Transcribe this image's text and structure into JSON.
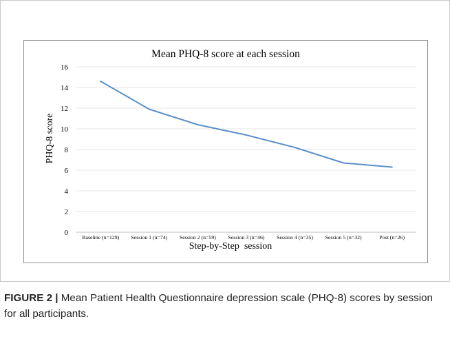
{
  "chart_data": {
    "type": "line",
    "title": "Mean PHQ-8 score at each session",
    "xlabel": "Step-by-Step  session",
    "ylabel": "PHQ-8 score",
    "categories": [
      "Baseline (n=129)",
      "Session 1 (n=74)",
      "Session 2 (n=59)",
      "Session 3 (n=46)",
      "Session 4 (n=35)",
      "Session 5 (n=32)",
      "Post (n=26)"
    ],
    "series": [
      {
        "values": [
          14.6,
          11.9,
          10.4,
          9.4,
          8.2,
          6.7,
          6.3
        ]
      }
    ],
    "ylim": [
      0,
      16
    ],
    "yticks": [
      0,
      2,
      4,
      6,
      8,
      10,
      12,
      14,
      16
    ],
    "grid": true,
    "line_color": "#5b8fc9"
  },
  "caption": {
    "label": "FIGURE 2 |",
    "text": " Mean Patient Health Questionnaire depression scale (PHQ-8) scores by session for all participants."
  }
}
